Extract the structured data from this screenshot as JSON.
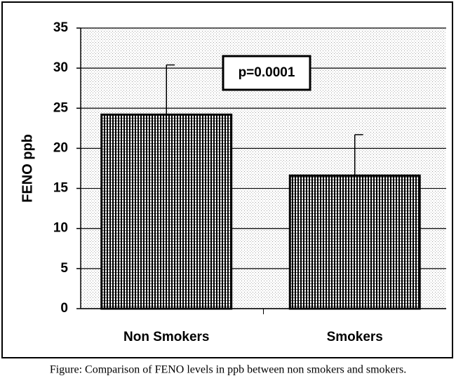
{
  "chart_data": {
    "type": "bar",
    "caption": "Figure: Comparison of FENO levels in ppb between non smokers and smokers.",
    "ylabel": "FENO ppb",
    "annotation": "p=0.0001",
    "categories": [
      "Non Smokers",
      "Smokers"
    ],
    "values": [
      24.2,
      16.6
    ],
    "errors": [
      6.2,
      5.1
    ],
    "color": "#000000",
    "ylim": [
      0,
      35
    ],
    "yticks": [
      0,
      5,
      10,
      15,
      20,
      25,
      30,
      35
    ],
    "grid": true
  }
}
